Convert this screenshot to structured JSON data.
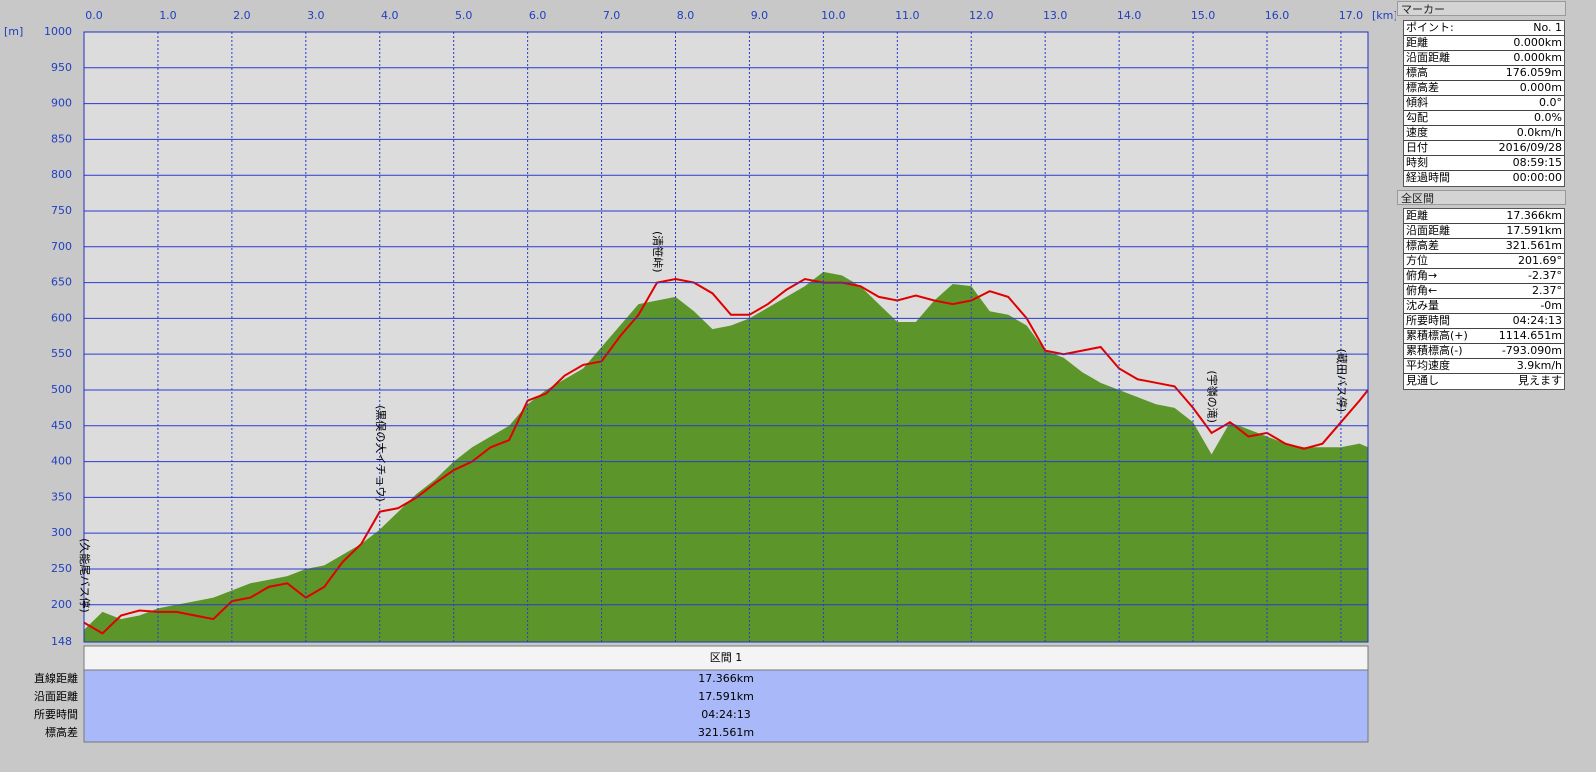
{
  "chart_data": {
    "type": "area",
    "x_unit": "[km]",
    "y_unit": "[m]",
    "xlim": [
      0,
      17.366
    ],
    "ylim": [
      148,
      1000
    ],
    "xticks": [
      {
        "value": 0,
        "label": "0.0"
      },
      {
        "value": 1,
        "label": "1.0"
      },
      {
        "value": 2,
        "label": "2.0"
      },
      {
        "value": 3,
        "label": "3.0"
      },
      {
        "value": 4,
        "label": "4.0"
      },
      {
        "value": 5,
        "label": "5.0"
      },
      {
        "value": 6,
        "label": "6.0"
      },
      {
        "value": 7,
        "label": "7.0"
      },
      {
        "value": 8,
        "label": "8.0"
      },
      {
        "value": 9,
        "label": "9.0"
      },
      {
        "value": 10,
        "label": "10.0"
      },
      {
        "value": 11,
        "label": "11.0"
      },
      {
        "value": 12,
        "label": "12.0"
      },
      {
        "value": 13,
        "label": "13.0"
      },
      {
        "value": 14,
        "label": "14.0"
      },
      {
        "value": 15,
        "label": "15.0"
      },
      {
        "value": 16,
        "label": "16.0"
      },
      {
        "value": 17,
        "label": "17.0"
      }
    ],
    "yticks": [
      148,
      200,
      250,
      300,
      350,
      400,
      450,
      500,
      550,
      600,
      650,
      700,
      750,
      800,
      850,
      900,
      950,
      1000
    ],
    "grid": true,
    "x": [
      0,
      0.25,
      0.5,
      0.75,
      1,
      1.25,
      1.5,
      1.75,
      2,
      2.25,
      2.5,
      2.75,
      3,
      3.25,
      3.5,
      3.75,
      4,
      4.25,
      4.5,
      4.75,
      5,
      5.25,
      5.5,
      5.75,
      6,
      6.25,
      6.5,
      6.75,
      7,
      7.25,
      7.5,
      7.75,
      8,
      8.25,
      8.5,
      8.75,
      9,
      9.25,
      9.5,
      9.75,
      10,
      10.25,
      10.5,
      10.75,
      11,
      11.25,
      11.5,
      11.75,
      12,
      12.25,
      12.5,
      12.75,
      13,
      13.25,
      13.5,
      13.75,
      14,
      14.25,
      14.5,
      14.75,
      15,
      15.25,
      15.5,
      15.75,
      16,
      16.25,
      16.5,
      16.75,
      17,
      17.25,
      17.366
    ],
    "series": [
      {
        "type": "area",
        "color": "#5c962a",
        "values": [
          165,
          190,
          180,
          185,
          195,
          200,
          205,
          210,
          220,
          230,
          235,
          240,
          250,
          255,
          270,
          285,
          305,
          330,
          355,
          375,
          400,
          420,
          435,
          450,
          480,
          500,
          515,
          530,
          560,
          590,
          620,
          625,
          630,
          610,
          585,
          590,
          600,
          615,
          630,
          645,
          665,
          660,
          645,
          620,
          595,
          595,
          625,
          648,
          645,
          610,
          605,
          590,
          555,
          545,
          525,
          510,
          500,
          490,
          480,
          475,
          455,
          410,
          455,
          445,
          435,
          425,
          420,
          420,
          420,
          425,
          420
        ]
      },
      {
        "type": "line",
        "color": "#e00000",
        "values": [
          175,
          160,
          185,
          192,
          190,
          190,
          185,
          180,
          205,
          210,
          225,
          230,
          210,
          225,
          260,
          285,
          330,
          335,
          350,
          370,
          388,
          400,
          420,
          430,
          485,
          495,
          520,
          535,
          540,
          575,
          605,
          650,
          655,
          650,
          635,
          605,
          605,
          620,
          640,
          655,
          650,
          650,
          645,
          630,
          625,
          632,
          625,
          620,
          625,
          638,
          630,
          600,
          555,
          550,
          555,
          560,
          530,
          515,
          510,
          505,
          475,
          440,
          455,
          435,
          440,
          425,
          418,
          425,
          455,
          485,
          500
        ]
      }
    ],
    "annotations": [
      {
        "x": 0,
        "text": "(久能尾バス停)"
      },
      {
        "x": 4,
        "text": "(黒俣の大イチョウ)"
      },
      {
        "x": 7.75,
        "text": "(清笹峠)"
      },
      {
        "x": 15.25,
        "text": "(宇嶺の滝)"
      },
      {
        "x": 17,
        "text": "(蔵田バス停)"
      }
    ]
  },
  "summary_table": {
    "header": "区間 1",
    "rows": [
      [
        "直線距離",
        "17.366km"
      ],
      [
        "沿面距離",
        "17.591km"
      ],
      [
        "所要時間",
        "04:24:13"
      ],
      [
        "標高差",
        "321.561m"
      ]
    ]
  },
  "marker_panel": {
    "title": "マーカー",
    "rows": [
      [
        "ポイント:",
        "No. 1"
      ],
      [
        "距離",
        "0.000km"
      ],
      [
        "沿面距離",
        "0.000km"
      ],
      [
        "標高",
        "176.059m"
      ],
      [
        "標高差",
        "0.000m"
      ],
      [
        "傾斜",
        "0.0°"
      ],
      [
        "勾配",
        "0.0%"
      ],
      [
        "速度",
        "0.0km/h"
      ],
      [
        "日付",
        "2016/09/28"
      ],
      [
        "時刻",
        "08:59:15"
      ],
      [
        "経過時間",
        "00:00:00"
      ]
    ]
  },
  "section_panel": {
    "title": "全区間",
    "rows": [
      [
        "距離",
        "17.366km"
      ],
      [
        "沿面距離",
        "17.591km"
      ],
      [
        "標高差",
        "321.561m"
      ],
      [
        "方位",
        "201.69°"
      ],
      [
        "俯角→",
        "-2.37°"
      ],
      [
        "俯角←",
        "2.37°"
      ],
      [
        "沈み量",
        "-0m"
      ],
      [
        "所要時間",
        "04:24:13"
      ],
      [
        "累積標高(+)",
        "1114.651m"
      ],
      [
        "累積標高(-)",
        "-793.090m"
      ],
      [
        "平均速度",
        "3.9km/h"
      ],
      [
        "見通し",
        "見えます"
      ]
    ]
  }
}
